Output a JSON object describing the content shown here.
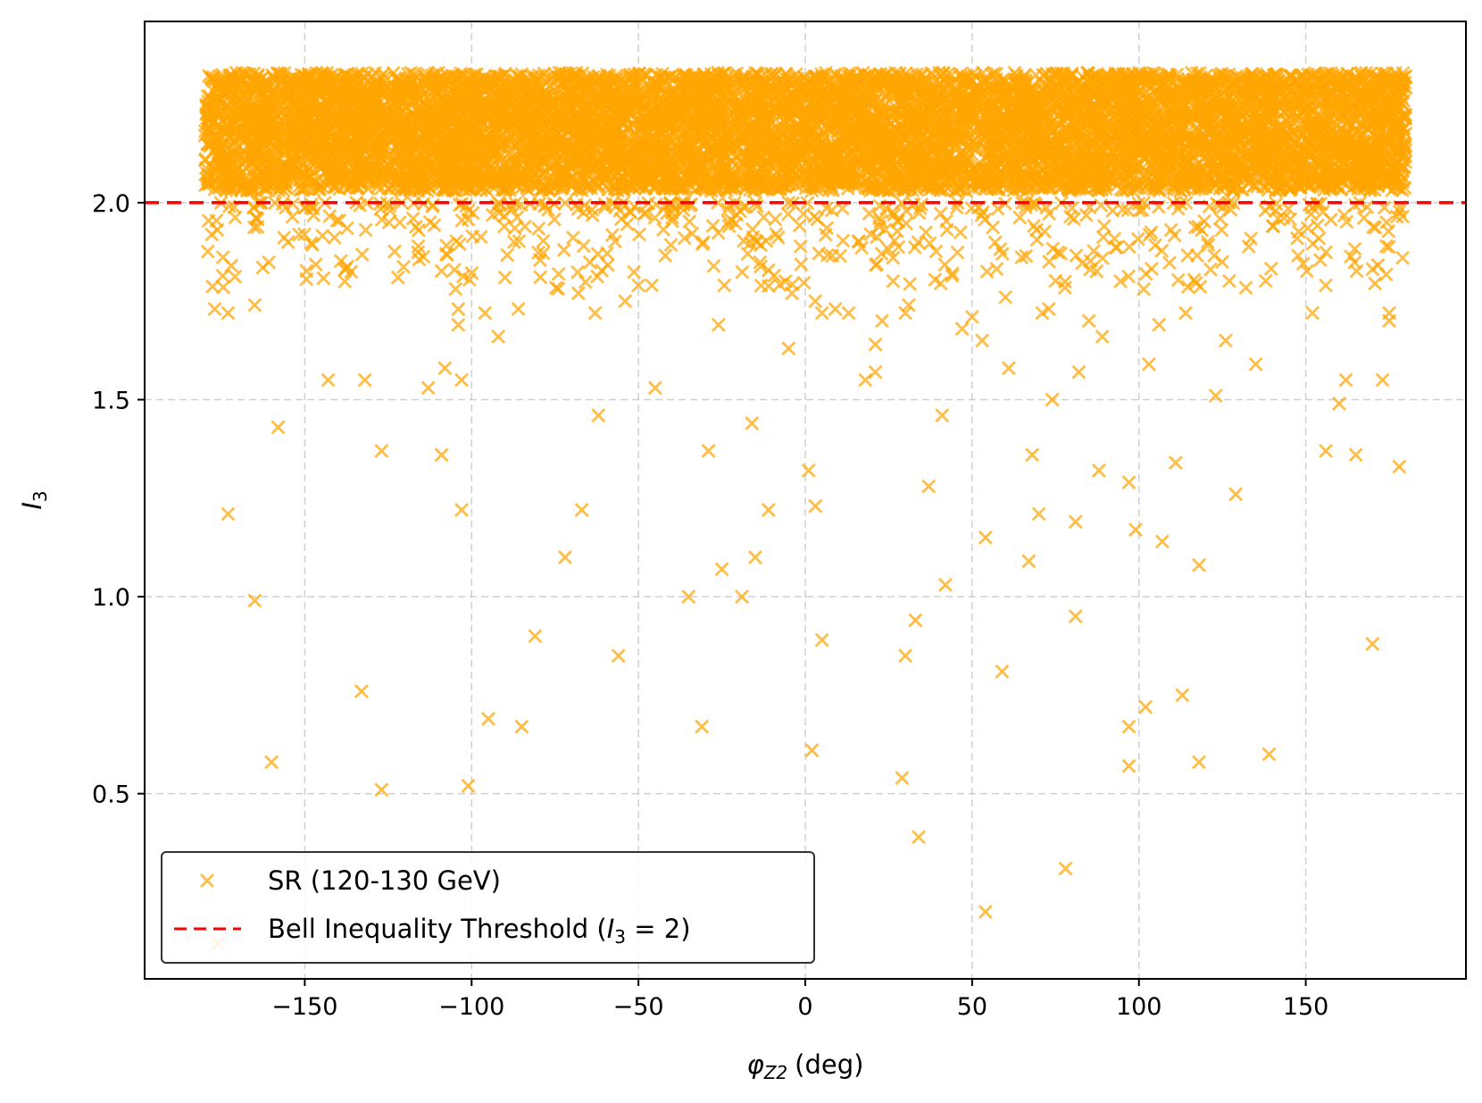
{
  "chart_data": {
    "type": "scatter",
    "title": "",
    "xlabel": "(deg)",
    "xlabel_symbol": "φ",
    "xlabel_subscript": "Z2",
    "ylabel_symbol": "I",
    "ylabel_subscript": "3",
    "xlim": [
      -198,
      198
    ],
    "ylim": [
      0.03,
      2.46
    ],
    "xticks": [
      -150,
      -100,
      -50,
      0,
      50,
      100,
      150
    ],
    "xtick_labels": [
      "−150",
      "−100",
      "−50",
      "0",
      "50",
      "100",
      "150"
    ],
    "yticks": [
      0.5,
      1.0,
      1.5,
      2.0
    ],
    "ytick_labels": [
      "0.5",
      "1.0",
      "1.5",
      "2.0"
    ],
    "grid": true,
    "threshold": {
      "y": 2.0,
      "color": "#ff0000",
      "style": "dashed"
    },
    "series": [
      {
        "name": "SR (120-130 GeV)",
        "color": "#ffa500",
        "marker": "x",
        "dense_band": {
          "x_range": [
            -180,
            180
          ],
          "y_range": [
            2.03,
            2.33
          ],
          "approx_points": 9000
        },
        "near_threshold": {
          "x_range": [
            -180,
            180
          ],
          "y_range": [
            1.78,
            2.0
          ],
          "approx_points": 480
        },
        "outliers": [
          [
            -177,
            1.73
          ],
          [
            -173,
            1.72
          ],
          [
            -172,
            1.84
          ],
          [
            -173,
            1.21
          ],
          [
            -165,
            1.74
          ],
          [
            -165,
            0.99
          ],
          [
            -160,
            0.58
          ],
          [
            -158,
            1.43
          ],
          [
            -155,
            1.9
          ],
          [
            -143,
            1.55
          ],
          [
            -138,
            1.8
          ],
          [
            -132,
            1.55
          ],
          [
            -133,
            0.76
          ],
          [
            -127,
            1.37
          ],
          [
            -127,
            0.51
          ],
          [
            -113,
            1.53
          ],
          [
            -109,
            1.36
          ],
          [
            -108,
            1.58
          ],
          [
            -104,
            1.73
          ],
          [
            -104,
            1.69
          ],
          [
            -103,
            1.55
          ],
          [
            -103,
            1.22
          ],
          [
            -101,
            0.52
          ],
          [
            -96,
            1.72
          ],
          [
            -95,
            0.69
          ],
          [
            -92,
            1.66
          ],
          [
            -86,
            1.73
          ],
          [
            -85,
            0.67
          ],
          [
            -81,
            0.9
          ],
          [
            -72,
            1.1
          ],
          [
            -68,
            1.77
          ],
          [
            -67,
            1.22
          ],
          [
            -63,
            1.72
          ],
          [
            -62,
            1.46
          ],
          [
            -56,
            0.85
          ],
          [
            -54,
            1.75
          ],
          [
            -50,
            1.79
          ],
          [
            -46,
            1.79
          ],
          [
            -45,
            1.53
          ],
          [
            -35,
            1.0
          ],
          [
            -31,
            0.67
          ],
          [
            -29,
            1.37
          ],
          [
            -26,
            1.69
          ],
          [
            -25,
            1.07
          ],
          [
            -19,
            1.0
          ],
          [
            -16,
            1.44
          ],
          [
            -15,
            1.1
          ],
          [
            -11,
            1.22
          ],
          [
            -6,
            1.8
          ],
          [
            -5,
            1.63
          ],
          [
            -4,
            1.77
          ],
          [
            1,
            1.32
          ],
          [
            2,
            0.61
          ],
          [
            3,
            1.75
          ],
          [
            3,
            1.23
          ],
          [
            5,
            0.89
          ],
          [
            5,
            1.72
          ],
          [
            9,
            1.73
          ],
          [
            13,
            1.72
          ],
          [
            18,
            1.55
          ],
          [
            21,
            1.64
          ],
          [
            21,
            1.57
          ],
          [
            23,
            1.7
          ],
          [
            29,
            0.54
          ],
          [
            30,
            0.85
          ],
          [
            30,
            1.72
          ],
          [
            31,
            1.74
          ],
          [
            33,
            0.94
          ],
          [
            34,
            0.39
          ],
          [
            37,
            1.28
          ],
          [
            41,
            1.46
          ],
          [
            42,
            1.03
          ],
          [
            47,
            1.68
          ],
          [
            50,
            1.71
          ],
          [
            53,
            1.65
          ],
          [
            54,
            1.15
          ],
          [
            54,
            0.2
          ],
          [
            59,
            0.81
          ],
          [
            60,
            1.76
          ],
          [
            61,
            1.58
          ],
          [
            67,
            1.09
          ],
          [
            68,
            1.36
          ],
          [
            70,
            1.21
          ],
          [
            71,
            1.72
          ],
          [
            73,
            1.73
          ],
          [
            74,
            1.5
          ],
          [
            78,
            0.31
          ],
          [
            81,
            1.19
          ],
          [
            81,
            0.95
          ],
          [
            82,
            1.57
          ],
          [
            85,
            1.7
          ],
          [
            88,
            1.32
          ],
          [
            89,
            1.66
          ],
          [
            97,
            1.29
          ],
          [
            97,
            0.67
          ],
          [
            97,
            0.57
          ],
          [
            99,
            1.17
          ],
          [
            102,
            0.72
          ],
          [
            103,
            1.59
          ],
          [
            106,
            1.69
          ],
          [
            107,
            1.14
          ],
          [
            111,
            1.34
          ],
          [
            113,
            0.75
          ],
          [
            114,
            1.72
          ],
          [
            118,
            1.08
          ],
          [
            118,
            0.58
          ],
          [
            123,
            1.51
          ],
          [
            126,
            1.65
          ],
          [
            129,
            1.26
          ],
          [
            135,
            1.59
          ],
          [
            139,
            0.6
          ],
          [
            152,
            1.72
          ],
          [
            156,
            1.79
          ],
          [
            156,
            1.37
          ],
          [
            160,
            1.49
          ],
          [
            162,
            1.55
          ],
          [
            165,
            1.36
          ],
          [
            170,
            0.88
          ],
          [
            173,
            1.55
          ],
          [
            175,
            1.72
          ],
          [
            175,
            1.7
          ],
          [
            178,
            1.33
          ],
          [
            179,
            1.86
          ],
          [
            -176,
            0.12
          ]
        ]
      },
      {
        "name": "Bell Inequality Threshold",
        "legend_text": "Bell Inequality Threshold (",
        "legend_math_symbol": "I",
        "legend_math_subscript": "3",
        "legend_math_rest": " = 2)",
        "color": "#ff0000",
        "style": "dashed"
      }
    ],
    "legend_position": "lower-left"
  }
}
